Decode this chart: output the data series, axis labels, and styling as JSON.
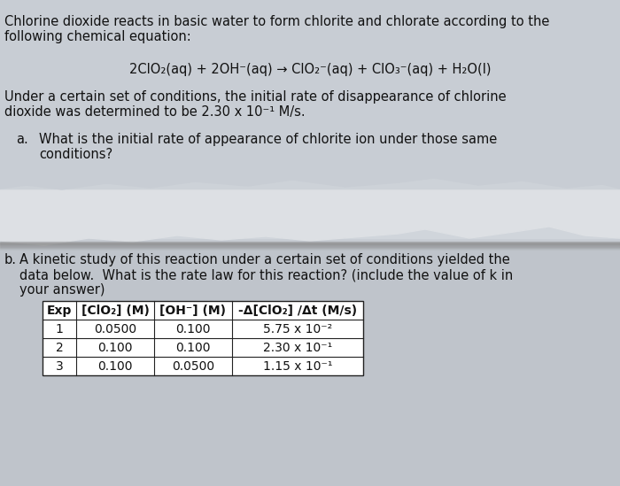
{
  "bg_color_top": "#c8cdd4",
  "bg_color_bottom": "#b8bdc4",
  "torn_paper_color": "#e8eaec",
  "title_text_line1": "Chlorine dioxide reacts in basic water to form chlorite and chlorate according to the",
  "title_text_line2": "following chemical equation:",
  "equation": "2ClO₂(aq) + 2OH⁻(aq) → ClO₂⁻(aq) + ClO₃⁻(aq) + H₂O(l)",
  "para1_line1": "Under a certain set of conditions, the initial rate of disappearance of chlorine",
  "para1_line2": "dioxide was determined to be 2.30 x 10⁻¹ M/s.",
  "question_a_label": "a.",
  "question_a_text_line1": "What is the initial rate of appearance of chlorite ion under those same",
  "question_a_text_line2": "conditions?",
  "question_b_label": "b.",
  "question_b_text_line1": "A kinetic study of this reaction under a certain set of conditions yielded the",
  "question_b_text_line2": "data below.  What is the rate law for this reaction? (include the value of k in",
  "question_b_text_line3": "your answer)",
  "table_headers": [
    "Exp",
    "[ClO₂] (M)",
    "[OH⁻] (M)",
    "-Δ[ClO₂] /Δt (M/s)"
  ],
  "table_rows": [
    [
      "1",
      "0.0500",
      "0.100",
      "5.75 x 10⁻²"
    ],
    [
      "2",
      "0.100",
      "0.100",
      "2.30 x 10⁻¹"
    ],
    [
      "3",
      "0.100",
      "0.0500",
      "1.15 x 10⁻¹"
    ]
  ],
  "font_size_main": 10.5,
  "font_size_eq": 10.5,
  "font_size_table": 10.0,
  "text_color": "#111111"
}
